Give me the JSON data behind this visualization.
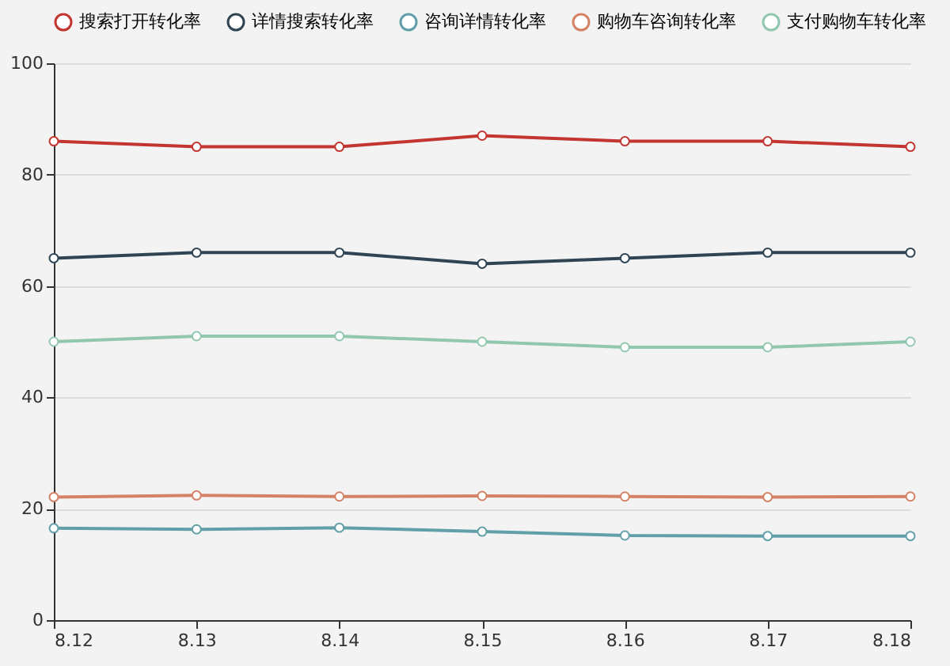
{
  "chart_data": {
    "type": "line",
    "categories": [
      "8.12",
      "8.13",
      "8.14",
      "8.15",
      "8.16",
      "8.17",
      "8.18"
    ],
    "series": [
      {
        "name": "搜索打开转化率",
        "color": "#c23531",
        "values": [
          86,
          85,
          85,
          87,
          86,
          86,
          85
        ]
      },
      {
        "name": "详情搜索转化率",
        "color": "#2f4554",
        "values": [
          65,
          66,
          66,
          64,
          65,
          66,
          66
        ]
      },
      {
        "name": "咨询详情转化率",
        "color": "#61a0a8",
        "values": [
          16.5,
          16.3,
          16.6,
          15.9,
          15.2,
          15.1,
          15.1
        ]
      },
      {
        "name": "购物车咨询转化率",
        "color": "#d48265",
        "values": [
          22.1,
          22.4,
          22.2,
          22.3,
          22.2,
          22.1,
          22.2
        ]
      },
      {
        "name": "支付购物车转化率",
        "color": "#91c7ae",
        "values": [
          50,
          51,
          51,
          50,
          49,
          49,
          50
        ]
      }
    ],
    "ylim": [
      0,
      100
    ],
    "yticks": [
      0,
      20,
      40,
      60,
      80,
      100
    ],
    "grid": "y",
    "legend": "top",
    "marker": "circle",
    "line_style": "solid"
  }
}
